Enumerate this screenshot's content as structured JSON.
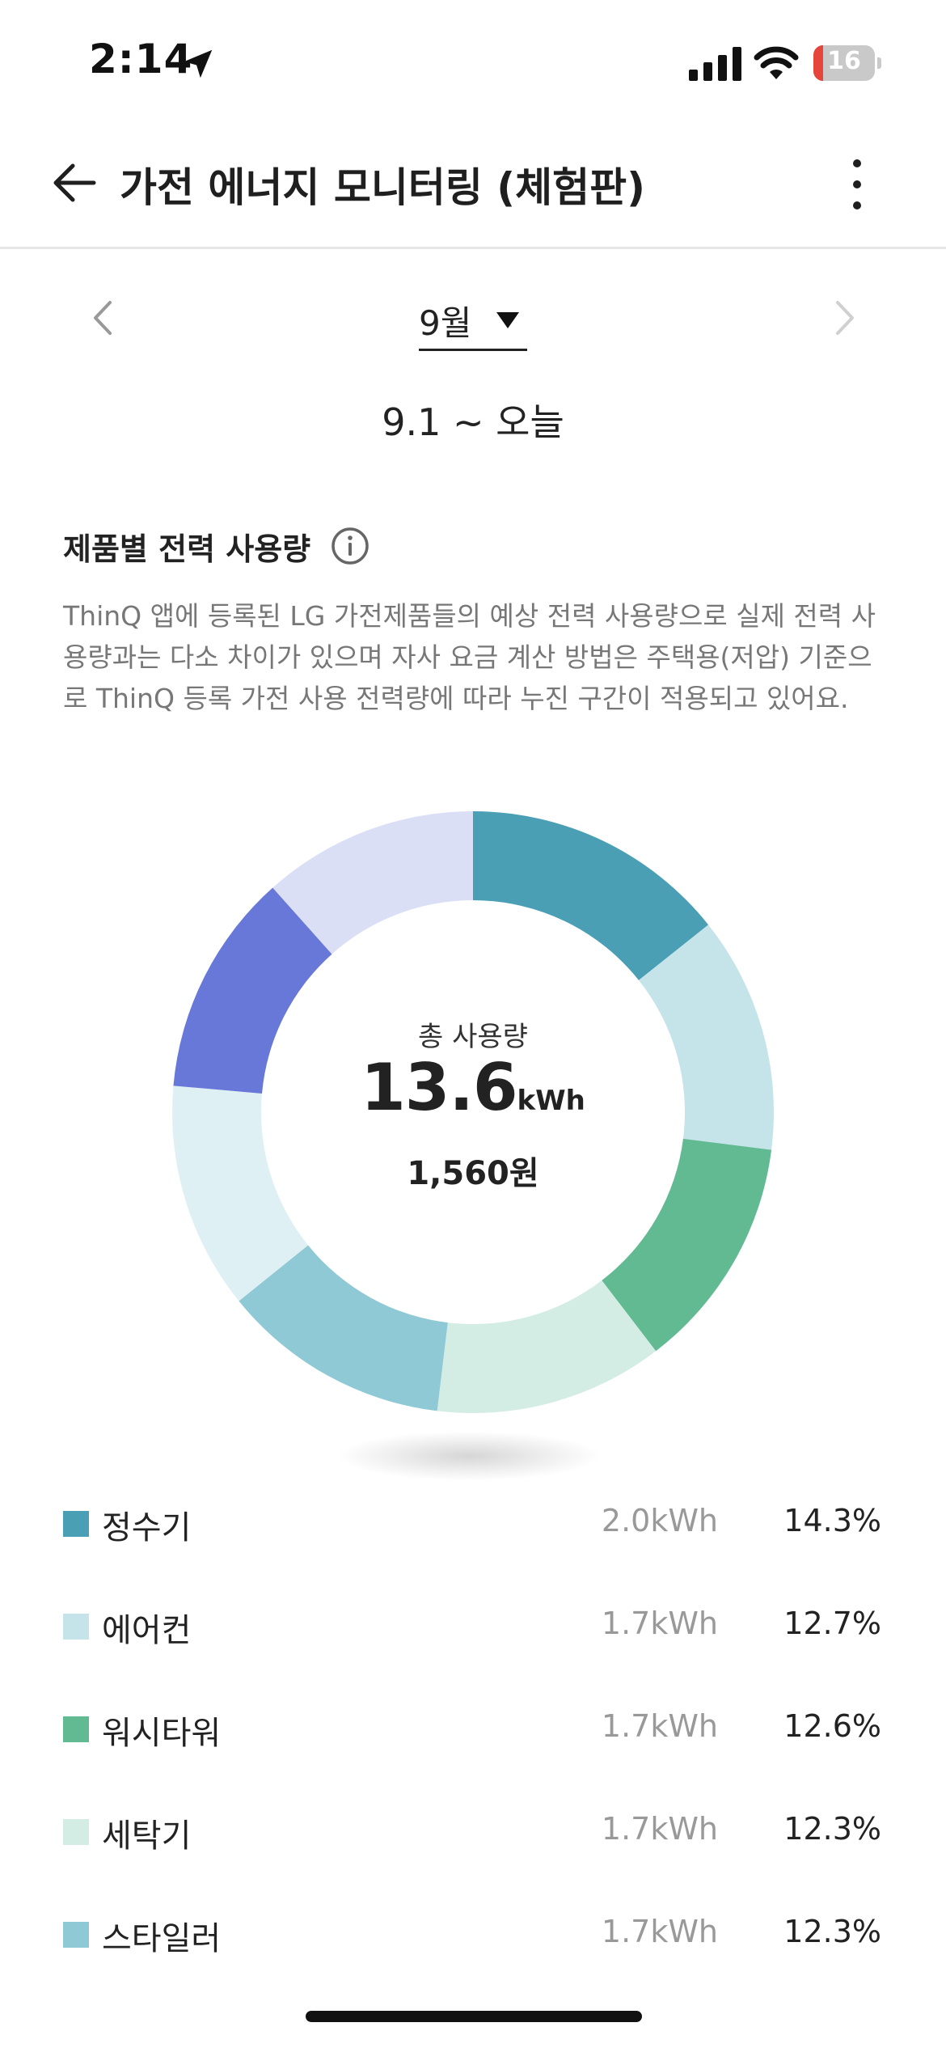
{
  "status_bar": {
    "time": "2:14",
    "battery": "16",
    "battery_level": 0.16
  },
  "header": {
    "title": "가전 에너지 모니터링 (체험판)"
  },
  "month_selector": {
    "month": "9월",
    "range": "9.1 ~ 오늘"
  },
  "section": {
    "title": "제품별 전력 사용량",
    "description": "ThinQ 앱에 등록된 LG 가전제품들의 예상 전력 사용량으로 실제 전력 사용량과는 다소 차이가 있으며 자사 요금 계산 방법은 주택용(저압) 기준으로 ThinQ 등록 가전 사용 전력량에 따라 누진 구간이 적용되고 있어요."
  },
  "summary": {
    "label": "총 사용량",
    "value": "13.6",
    "unit": "kWh",
    "cost": "1,560원"
  },
  "legend": [
    {
      "name": "정수기",
      "kwh": "2.0kWh",
      "pct": "14.3%",
      "color": "#4a9fb5"
    },
    {
      "name": "에어컨",
      "kwh": "1.7kWh",
      "pct": "12.7%",
      "color": "#c4e4ea"
    },
    {
      "name": "워시타워",
      "kwh": "1.7kWh",
      "pct": "12.6%",
      "color": "#62ba93"
    },
    {
      "name": "세탁기",
      "kwh": "1.7kWh",
      "pct": "12.3%",
      "color": "#d4ede4"
    },
    {
      "name": "스타일러",
      "kwh": "1.7kWh",
      "pct": "12.3%",
      "color": "#8fc9d5"
    }
  ],
  "chart_data": {
    "type": "pie",
    "title": "",
    "slices": [
      {
        "label": "정수기",
        "value": 14.3,
        "color": "#4a9fb5"
      },
      {
        "label": "에어컨",
        "value": 12.7,
        "color": "#c4e4ea"
      },
      {
        "label": "워시타워",
        "value": 12.6,
        "color": "#62ba93"
      },
      {
        "label": "세탁기",
        "value": 12.3,
        "color": "#d4ede4"
      },
      {
        "label": "스타일러",
        "value": 12.3,
        "color": "#8fc9d5"
      },
      {
        "label": "",
        "value": 12.2,
        "color": "#dff0f4"
      },
      {
        "label": "",
        "value": 12.0,
        "color": "#6778d8"
      },
      {
        "label": "",
        "value": 11.6,
        "color": "#dadff5"
      }
    ]
  }
}
